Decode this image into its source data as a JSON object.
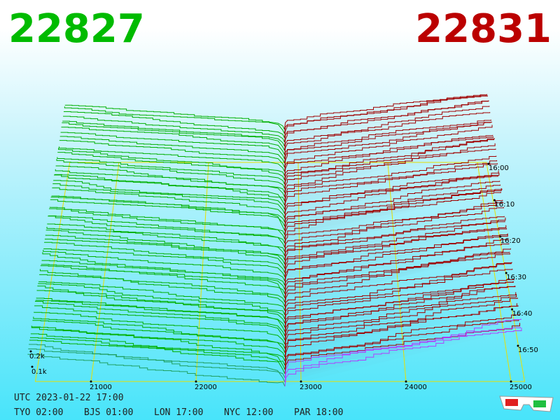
{
  "header": {
    "bid": "22827",
    "ask": "22831"
  },
  "price_axis": {
    "labels": [
      "21000",
      "22000",
      "23000",
      "24000",
      "25000"
    ]
  },
  "depth_axis": {
    "labels": [
      "0.2k",
      "0.1k"
    ]
  },
  "time_axis": {
    "labels": [
      "16:00",
      "16:10",
      "16:20",
      "16:30",
      "16:40",
      "16:50"
    ]
  },
  "footer": {
    "utc": "UTC 2023-01-22 17:00",
    "clocks": [
      "TYO 02:00",
      "BJS 01:00",
      "LON 17:00",
      "NYC 12:00",
      "PAR 18:00"
    ]
  }
}
